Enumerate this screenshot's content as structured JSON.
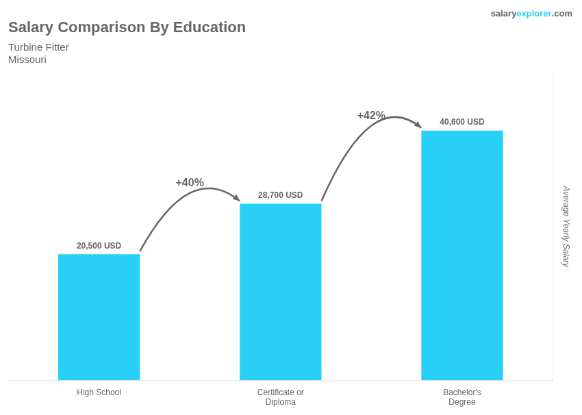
{
  "chart_data": {
    "type": "bar",
    "title": "Salary Comparison By Education",
    "subtitle": [
      "Turbine Fitter",
      "Missouri"
    ],
    "brand": [
      "salary",
      "explorer",
      ".com"
    ],
    "categories": [
      "High School",
      "Certificate or\nDiploma",
      "Bachelor's\nDegree"
    ],
    "values": [
      20500,
      28700,
      40600
    ],
    "value_labels": [
      "20,500 USD",
      "28,700 USD",
      "40,600 USD"
    ],
    "data_labels": true,
    "color": "#29d0f5",
    "ylabel": "Average Yearly Salary",
    "ylim": [
      0,
      50000
    ],
    "annotations": [
      "+40%",
      "+42%"
    ],
    "grid": false,
    "tick_labels": "x"
  }
}
